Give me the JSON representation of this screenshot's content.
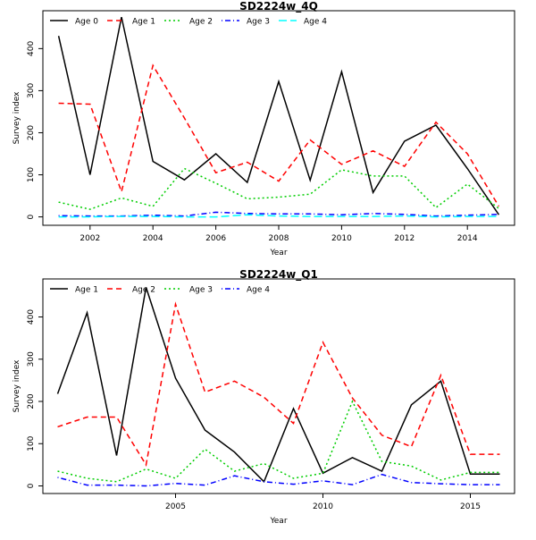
{
  "chart_data": [
    {
      "type": "line",
      "title": "SD2224w_4Q",
      "xlabel": "Year",
      "ylabel": "Survey index",
      "x": [
        2001,
        2002,
        2003,
        2004,
        2005,
        2006,
        2007,
        2008,
        2009,
        2010,
        2011,
        2012,
        2013,
        2014,
        2015
      ],
      "xlim": [
        2000.5,
        2015.5
      ],
      "ylim": [
        -20,
        490
      ],
      "xticks": [
        2002,
        2004,
        2006,
        2008,
        2010,
        2012,
        2014
      ],
      "yticks": [
        0,
        100,
        200,
        300,
        400
      ],
      "legend_position": "top",
      "series": [
        {
          "name": "Age 0",
          "color": "#000000",
          "dash": "solid",
          "values": [
            430,
            100,
            475,
            132,
            88,
            150,
            82,
            322,
            87,
            345,
            58,
            180,
            218,
            115,
            5
          ]
        },
        {
          "name": "Age 1",
          "color": "#ff0000",
          "dash": "dashed",
          "values": [
            270,
            268,
            60,
            360,
            235,
            105,
            130,
            85,
            183,
            125,
            157,
            120,
            225,
            150,
            25
          ]
        },
        {
          "name": "Age 2",
          "color": "#00cd00",
          "dash": "dotted",
          "values": [
            35,
            18,
            45,
            25,
            115,
            80,
            43,
            47,
            54,
            112,
            97,
            97,
            22,
            78,
            20
          ]
        },
        {
          "name": "Age 3",
          "color": "#0000ff",
          "dash": "dotdash",
          "values": [
            3,
            2,
            2,
            4,
            2,
            11,
            8,
            7,
            7,
            5,
            8,
            6,
            2,
            4,
            6
          ]
        },
        {
          "name": "Age 4",
          "color": "#00ffff",
          "dash": "longdash",
          "values": [
            0,
            0,
            1,
            1,
            0,
            0,
            5,
            2,
            1,
            1,
            1,
            2,
            0,
            1,
            1
          ]
        }
      ]
    },
    {
      "type": "line",
      "title": "SD2224w_Q1",
      "xlabel": "Year",
      "ylabel": "Survey index",
      "x": [
        2001,
        2002,
        2003,
        2004,
        2005,
        2006,
        2007,
        2008,
        2009,
        2010,
        2011,
        2012,
        2013,
        2014,
        2015,
        2016
      ],
      "xlim": [
        2000.5,
        2016.5
      ],
      "ylim": [
        -18,
        490
      ],
      "xticks": [
        2005,
        2010,
        2015
      ],
      "yticks": [
        0,
        100,
        200,
        300,
        400
      ],
      "legend_position": "top",
      "series": [
        {
          "name": "Age 1",
          "color": "#000000",
          "dash": "solid",
          "values": [
            218,
            410,
            72,
            470,
            255,
            132,
            80,
            10,
            183,
            30,
            67,
            35,
            192,
            248,
            28,
            28
          ]
        },
        {
          "name": "Age 2",
          "color": "#ff0000",
          "dash": "dashed",
          "values": [
            140,
            163,
            163,
            50,
            430,
            222,
            248,
            210,
            148,
            340,
            208,
            120,
            93,
            262,
            75,
            75
          ]
        },
        {
          "name": "Age 3",
          "color": "#00cd00",
          "dash": "dotted",
          "values": [
            35,
            18,
            10,
            40,
            18,
            87,
            35,
            53,
            18,
            30,
            200,
            58,
            47,
            14,
            32,
            32
          ]
        },
        {
          "name": "Age 4",
          "color": "#0000ff",
          "dash": "dotdash",
          "values": [
            20,
            2,
            2,
            0,
            6,
            2,
            24,
            10,
            4,
            12,
            3,
            27,
            8,
            5,
            3,
            3
          ]
        }
      ]
    }
  ]
}
